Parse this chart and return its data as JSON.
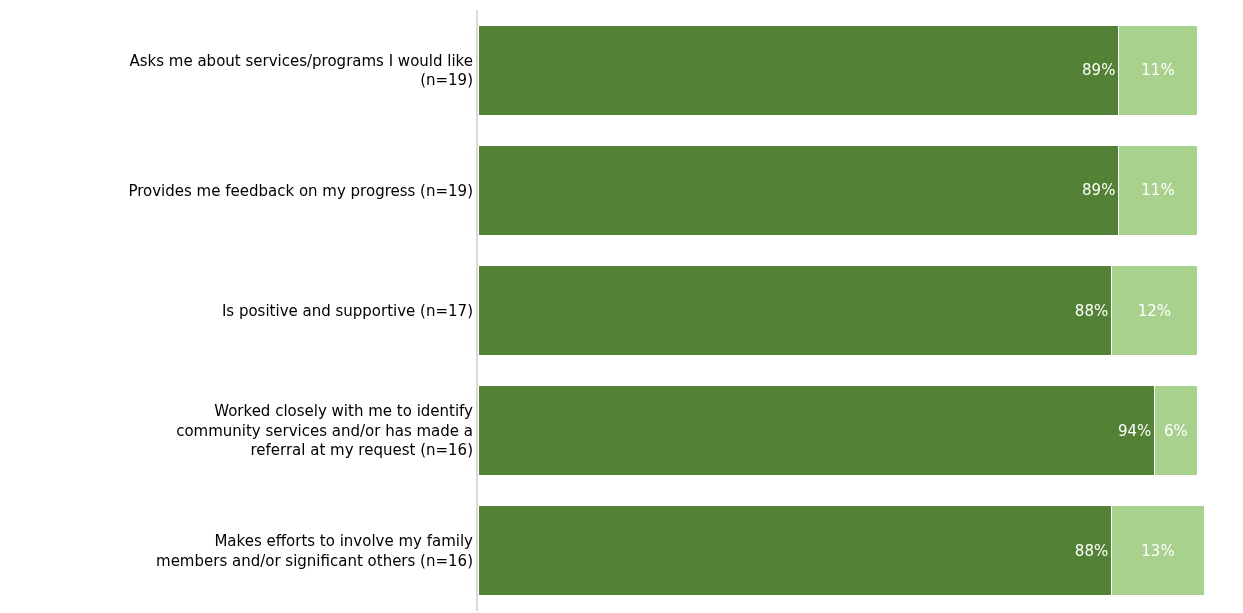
{
  "chart_data": {
    "type": "bar",
    "orientation": "horizontal",
    "stacked": true,
    "categories": [
      "Asks me about services/programs I would like\n(n=19)",
      "Provides me feedback on my progress (n=19)",
      "Is positive and supportive (n=17)",
      "Worked closely with me to identify\ncommunity services and/or has made a\nreferral at my request (n=16)",
      "Makes efforts to involve my family\nmembers and/or significant others (n=16)"
    ],
    "series": [
      {
        "color": "#538135",
        "values": [
          89,
          89,
          88,
          94,
          88
        ],
        "value_labels": [
          "89%",
          "89%",
          "88%",
          "94%",
          "88%"
        ]
      },
      {
        "color": "#a9d18e",
        "values": [
          11,
          11,
          12,
          6,
          13
        ],
        "value_labels": [
          "11%",
          "11%",
          "12%",
          "6%",
          "13%"
        ]
      }
    ]
  }
}
